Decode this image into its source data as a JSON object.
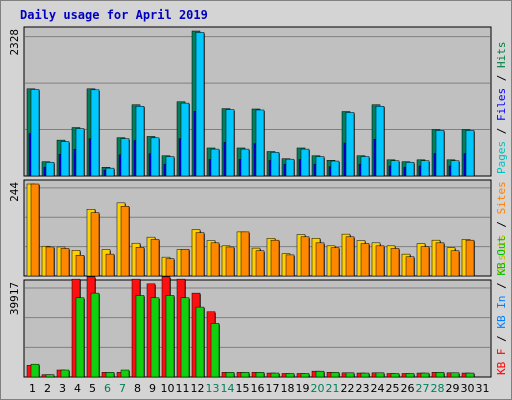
{
  "chart_data": {
    "type": "bar",
    "title": "Daily usage for April 2019",
    "days": [
      "1",
      "2",
      "3",
      "4",
      "5",
      "6",
      "7",
      "8",
      "9",
      "10",
      "11",
      "12",
      "13",
      "14",
      "15",
      "16",
      "17",
      "18",
      "19",
      "20",
      "21",
      "22",
      "23",
      "24",
      "25",
      "26",
      "27",
      "28",
      "29",
      "30",
      "31"
    ],
    "weekend_days": [
      "6",
      "7",
      "13",
      "14",
      "20",
      "21",
      "27",
      "28"
    ],
    "panels": [
      {
        "id": "hits-files-pages",
        "ymax_label": "2328",
        "ymax": 2328,
        "legend": [
          {
            "text": "Pages",
            "color": "#00c0c0"
          },
          {
            "text": "Files",
            "color": "#0000ff"
          },
          {
            "text": "Hits",
            "color": "#008040"
          }
        ],
        "series": [
          {
            "name": "Hits",
            "color": "#00805c",
            "values": [
              1400,
              230,
              576,
              778,
              1400,
              140,
              615,
              1144,
              635,
              325,
              1192,
              2328,
              450,
              1082,
              450,
              1076,
              393,
              278,
              450,
              325,
              252,
              1035,
              325,
              1144,
              260,
              230,
              260,
              746,
              260,
              746,
              0
            ]
          },
          {
            "name": "Files",
            "color": "#0000ff",
            "values": [
              680,
              140,
              349,
              430,
              600,
              95,
              340,
              570,
              358,
              190,
              600,
              1040,
              265,
              540,
              265,
              520,
              250,
              190,
              265,
              190,
              150,
              530,
              190,
              590,
              160,
              140,
              160,
              360,
              160,
              360,
              0
            ]
          },
          {
            "name": "Pages",
            "color": "#00c8ff",
            "values": [
              1390,
              220,
              553,
              762,
              1384,
              126,
              600,
              1120,
              613,
              312,
              1170,
              2305,
              432,
              1066,
              432,
              1060,
              380,
              270,
              432,
              312,
              240,
              1020,
              312,
              1120,
              245,
              220,
              245,
              732,
              245,
              732,
              0
            ]
          }
        ]
      },
      {
        "id": "visits-sites",
        "ymax_label": "244",
        "ymax": 244,
        "legend": [
          {
            "text": "Visits",
            "color": "#c0c000"
          },
          {
            "text": "Sites",
            "color": "#ff8000"
          }
        ],
        "series": [
          {
            "name": "Visits",
            "color": "#ffd000",
            "values": [
              244,
              79,
              77,
              68,
              177,
              70,
              194,
              87,
              103,
              50,
              70,
              123,
              94,
              80,
              117,
              74,
              100,
              59,
              110,
              100,
              80,
              111,
              94,
              88,
              80,
              58,
              86,
              95,
              75,
              97,
              0
            ]
          },
          {
            "name": "Sites",
            "color": "#ff8800",
            "values": [
              244,
              77,
              73,
              55,
              168,
              58,
              185,
              76,
              97,
              46,
              71,
              115,
              88,
              77,
              117,
              67,
              95,
              56,
              104,
              88,
              75,
              104,
              86,
              80,
              73,
              51,
              78,
              88,
              67,
              95,
              0
            ]
          }
        ]
      },
      {
        "id": "kbytes",
        "ymax_label": "39917",
        "ymax": 39917,
        "legend": [
          {
            "text": "KB F",
            "color": "#ff0000"
          },
          {
            "text": "KB In",
            "color": "#0080ff"
          },
          {
            "text": "KB Out",
            "color": "#00c000"
          }
        ],
        "series": [
          {
            "name": "KB F",
            "color": "#ff1010",
            "values": [
              5000,
              1000,
              3000,
              42000,
              43000,
              2000,
              2000,
              42000,
              40000,
              43000,
              42000,
              36000,
              28000,
              2000,
              2000,
              2000,
              1700,
              1500,
              1500,
              2500,
              2000,
              1800,
              1700,
              1800,
              1500,
              1500,
              1700,
              2000,
              1800,
              1700,
              0
            ]
          },
          {
            "name": "KB Out",
            "color": "#10d010",
            "values": [
              5500,
              1000,
              3000,
              34000,
              36000,
              2000,
              3000,
              35000,
              34000,
              35000,
              34000,
              30000,
              23000,
              2000,
              2000,
              2000,
              1700,
              1500,
              1500,
              2500,
              2000,
              1800,
              1700,
              1800,
              1500,
              1500,
              1700,
              2000,
              1800,
              1700,
              0
            ]
          }
        ]
      }
    ]
  }
}
